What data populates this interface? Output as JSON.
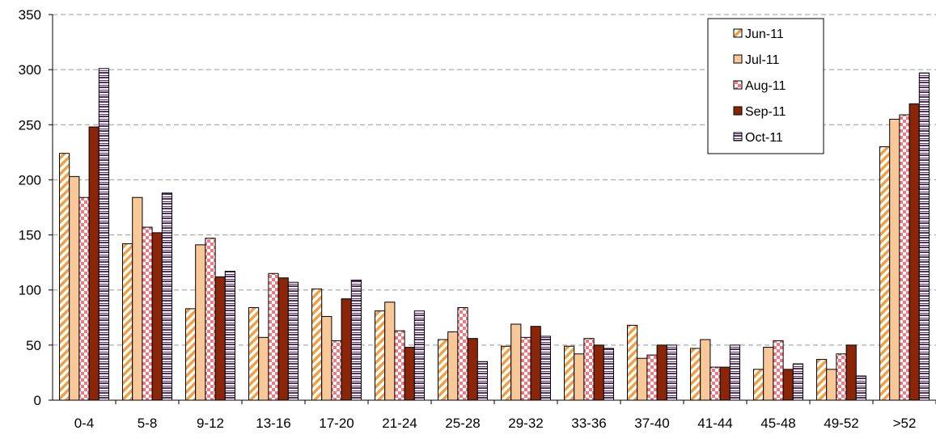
{
  "chart_data": {
    "type": "bar",
    "title": "",
    "xlabel": "",
    "ylabel": "",
    "ylim": [
      0,
      350
    ],
    "yticks": [
      "0",
      "50",
      "100",
      "150",
      "200",
      "250",
      "300",
      "350"
    ],
    "grid": "horizontal dashed",
    "legend_position": "top-right",
    "categories": [
      "0-4",
      "5-8",
      "9-12",
      "13-16",
      "17-20",
      "21-24",
      "25-28",
      "29-32",
      "33-36",
      "37-40",
      "41-44",
      "45-48",
      "49-52",
      ">52"
    ],
    "series": [
      {
        "name": "Jun-11",
        "pattern": "diagonal-stripes",
        "color": "#F0A040",
        "values": [
          224,
          142,
          83,
          84,
          101,
          81,
          55,
          49,
          49,
          68,
          47,
          28,
          37,
          230
        ]
      },
      {
        "name": "Jul-11",
        "pattern": "solid",
        "color": "#F8C898",
        "values": [
          203,
          184,
          141,
          57,
          76,
          89,
          62,
          69,
          42,
          38,
          55,
          48,
          28,
          255
        ]
      },
      {
        "name": "Aug-11",
        "pattern": "checkerboard",
        "color": "#F07880",
        "values": [
          184,
          157,
          147,
          115,
          54,
          63,
          84,
          57,
          56,
          41,
          30,
          54,
          42,
          259
        ]
      },
      {
        "name": "Sep-11",
        "pattern": "solid",
        "color": "#8B2508",
        "values": [
          248,
          152,
          112,
          111,
          92,
          48,
          56,
          67,
          50,
          50,
          30,
          28,
          50,
          269
        ]
      },
      {
        "name": "Oct-11",
        "pattern": "horizontal-stripes",
        "color": "#5A2A70",
        "values": [
          301,
          188,
          117,
          107,
          109,
          81,
          35,
          58,
          47,
          50,
          50,
          33,
          22,
          297
        ]
      }
    ]
  }
}
